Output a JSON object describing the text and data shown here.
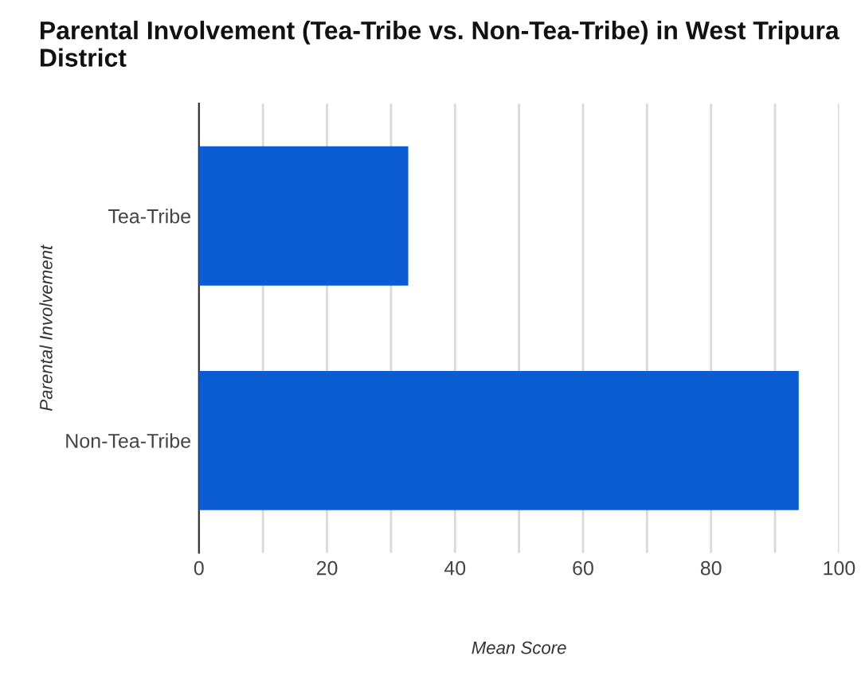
{
  "chart_data": {
    "type": "bar",
    "orientation": "horizontal",
    "title": "Parental Involvement (Tea-Tribe vs. Non-Tea-Tribe) in West Tripura District",
    "xlabel": "Mean Score",
    "ylabel": "Parental Involvement",
    "categories": [
      "Tea-Tribe",
      "Non-Tea-Tribe"
    ],
    "values": [
      32.7,
      93.7
    ],
    "color": "#0b5bd3",
    "xlim": [
      0,
      100
    ],
    "xticks": [
      0,
      {
        "value": 10,
        "label": null
      },
      20,
      {
        "value": 30,
        "label": null
      },
      40,
      {
        "value": 50,
        "label": null
      },
      60,
      {
        "value": 70,
        "label": null
      },
      80,
      {
        "value": 90,
        "label": null
      },
      100
    ],
    "grid": "x"
  }
}
